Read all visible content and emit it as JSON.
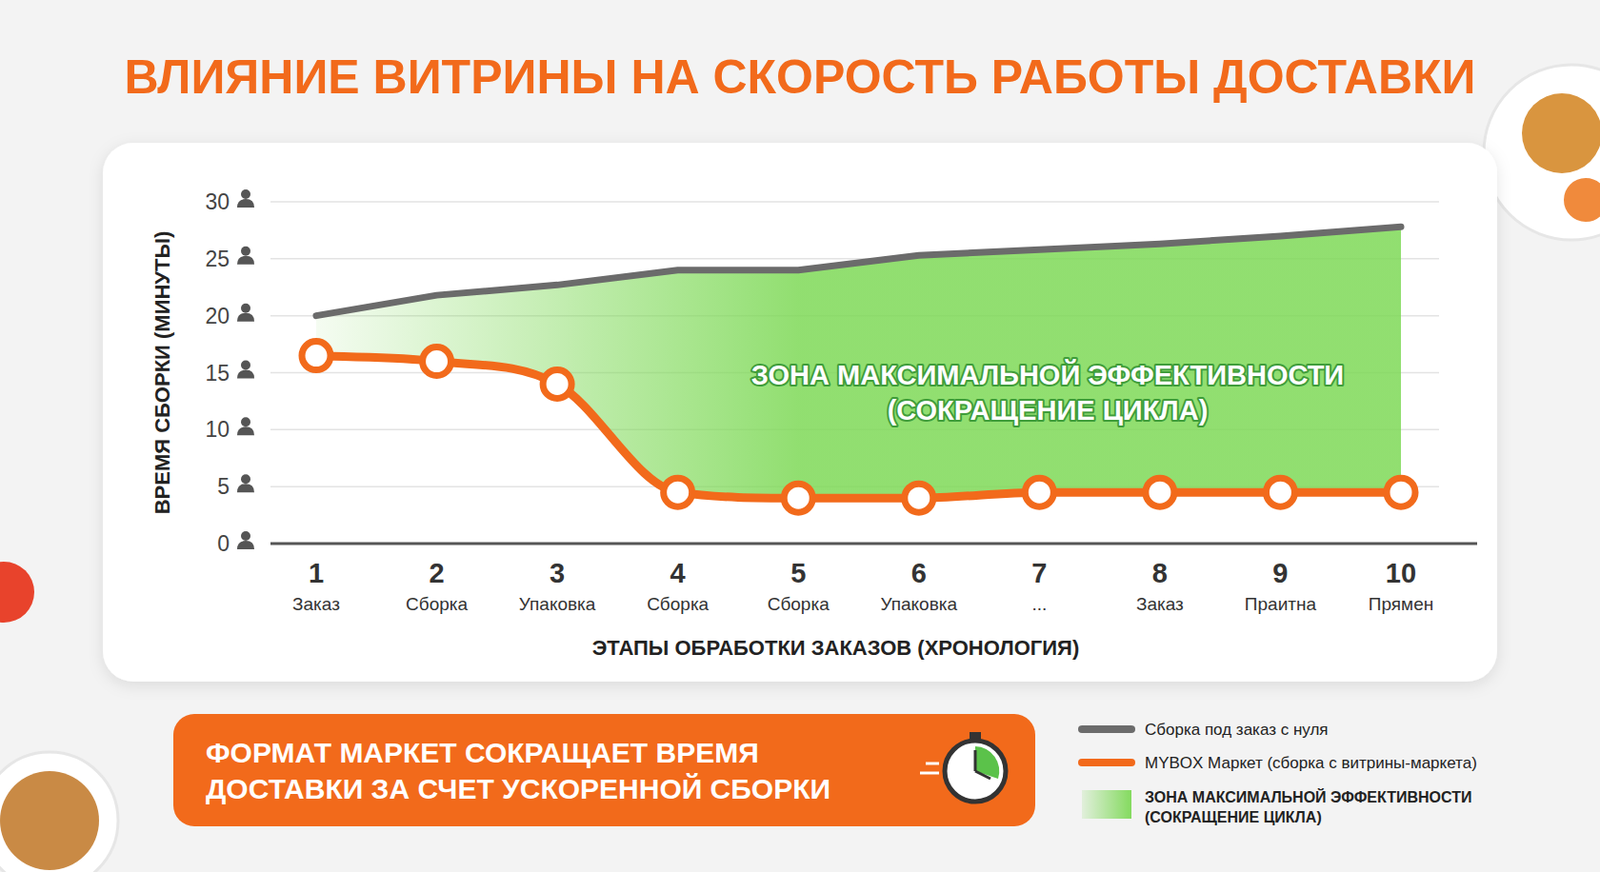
{
  "chart_data": {
    "type": "line",
    "title": "ВЛИЯНИЕ ВИТРИНЫ НА СКОРОСТЬ РАБОТЫ ДОСТАВКИ",
    "x_label": "ЭТАПЫ ОБРАБОТКИ ЗАКАЗОВ (ХРОНОЛОГИЯ)",
    "y_label": "ВРЕМЯ СБОРКИ (МИНУТЫ)",
    "categories": [
      "1",
      "2",
      "3",
      "4",
      "5",
      "6",
      "7",
      "8",
      "9",
      "10"
    ],
    "category_sublabels": [
      "Заказ",
      "Сборка",
      "Упаковка",
      "Сборка",
      "Сборка",
      "Упаковка",
      "...",
      "Заказ",
      "Праитна",
      "Прямен"
    ],
    "series": [
      {
        "name": "Сборка под заказ с нуля",
        "color": "#6b6b6b",
        "line_style": "solid",
        "marker": "none",
        "values": [
          20,
          21.8,
          22.7,
          24,
          24,
          25.3,
          25.8,
          26.3,
          27,
          27.8
        ]
      },
      {
        "name": "MYBOX Маркет (сборка с витрины-маркета)",
        "color": "#f26a1b",
        "line_style": "smooth",
        "marker": "circle",
        "values": [
          16.5,
          16,
          14,
          4.5,
          4,
          4,
          4.5,
          4.5,
          4.5,
          4.5
        ]
      }
    ],
    "fill_between": {
      "name": "ЗОНА МАКСИМАЛЬНОЙ ЭФФЕКТИВНОСТИ (СОКРАЩЕНИЕ ЦИКЛА)",
      "color": "#7ed957"
    },
    "annotation": [
      "ЗОНА МАКСИМАЛЬНОЙ ЭФФЕКТИВНОСТИ",
      "(СОКРАЩЕНИЕ ЦИКЛА)"
    ],
    "callout": [
      "ФОРМАТ МАРКЕТ СОКРАЩАЕТ ВРЕМЯ",
      "ДОСТАВКИ ЗА СЧЕТ УСКОРЕННОЙ СБОРКИ"
    ],
    "ylim": [
      0,
      30
    ],
    "yticks": [
      0,
      5,
      10,
      15,
      20,
      25,
      30
    ],
    "grid": true,
    "legend": "bottom-right"
  }
}
